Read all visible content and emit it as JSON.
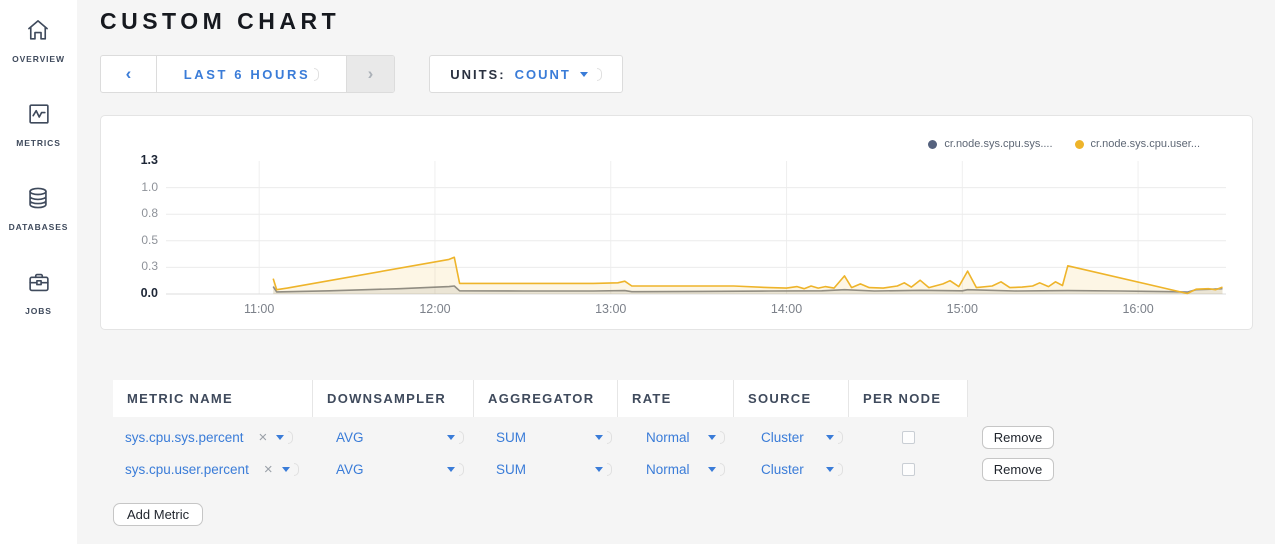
{
  "colors": {
    "accent_blue": "#3a7cd8",
    "slate": "#3f4a5c",
    "title": "#16191f",
    "page_bg": "#f5f5f5",
    "card_bg": "#ffffff",
    "grid": "#ececec",
    "series_sys_dot": "#55627e",
    "series_sys_line": "#84888f",
    "series_user": "#eeb42a"
  },
  "sidebar": {
    "items": [
      {
        "icon": "home-icon",
        "label": "OVERVIEW"
      },
      {
        "icon": "metrics-icon",
        "label": "METRICS"
      },
      {
        "icon": "databases-icon",
        "label": "DATABASES"
      },
      {
        "icon": "jobs-icon",
        "label": "JOBS"
      }
    ]
  },
  "header": {
    "title": "CUSTOM CHART"
  },
  "toolbar": {
    "time_range": {
      "prev": "‹",
      "label": "LAST 6 HOURS",
      "next": "›"
    },
    "units": {
      "label": "UNITS:",
      "value": "COUNT"
    }
  },
  "chart_data": {
    "type": "line",
    "title": "",
    "xlabel": "",
    "ylabel": "",
    "grid": true,
    "legend_position": "top-right",
    "ylim": [
      0,
      1.25
    ],
    "x_range_hours": [
      10.47,
      16.5
    ],
    "x_ticks": [
      {
        "label": "11:00",
        "t": 11
      },
      {
        "label": "12:00",
        "t": 12
      },
      {
        "label": "13:00",
        "t": 13
      },
      {
        "label": "14:00",
        "t": 14
      },
      {
        "label": "15:00",
        "t": 15
      },
      {
        "label": "16:00",
        "t": 16
      }
    ],
    "y_ticks": [
      {
        "label": "1.3",
        "v": 1.25,
        "bold": true
      },
      {
        "label": "1.0",
        "v": 1.0,
        "bold": false
      },
      {
        "label": "0.8",
        "v": 0.75,
        "bold": false
      },
      {
        "label": "0.5",
        "v": 0.5,
        "bold": false
      },
      {
        "label": "0.3",
        "v": 0.25,
        "bold": false
      },
      {
        "label": "0.0",
        "v": 0.0,
        "bold": true
      }
    ],
    "legend": [
      {
        "label": "cr.node.sys.cpu.sys....",
        "color": "#55627e"
      },
      {
        "label": "cr.node.sys.cpu.user...",
        "color": "#eeb42a"
      }
    ],
    "series": [
      {
        "name": "cr.node.sys.cpu.sys....",
        "line_color": "#84888f",
        "fill": "rgba(132,136,143,0.16)",
        "points": [
          [
            11.08,
            0.07
          ],
          [
            11.1,
            0.02
          ],
          [
            11.4,
            0.03
          ],
          [
            11.8,
            0.05
          ],
          [
            12.08,
            0.07
          ],
          [
            12.11,
            0.075
          ],
          [
            12.14,
            0.03
          ],
          [
            12.5,
            0.028
          ],
          [
            12.9,
            0.028
          ],
          [
            13.08,
            0.032
          ],
          [
            13.12,
            0.022
          ],
          [
            13.5,
            0.024
          ],
          [
            13.9,
            0.028
          ],
          [
            14.2,
            0.03
          ],
          [
            14.33,
            0.04
          ],
          [
            14.5,
            0.028
          ],
          [
            14.76,
            0.035
          ],
          [
            15.0,
            0.03
          ],
          [
            15.03,
            0.04
          ],
          [
            15.3,
            0.028
          ],
          [
            15.6,
            0.032
          ],
          [
            15.9,
            0.028
          ],
          [
            16.2,
            0.022
          ],
          [
            16.28,
            0.018
          ],
          [
            16.33,
            0.04
          ],
          [
            16.42,
            0.045
          ],
          [
            16.48,
            0.05
          ]
        ]
      },
      {
        "name": "cr.node.sys.cpu.user...",
        "line_color": "#eeb42a",
        "fill": "rgba(238,180,42,0.12)",
        "points": [
          [
            11.08,
            0.145
          ],
          [
            11.1,
            0.04
          ],
          [
            11.16,
            0.055
          ],
          [
            12.08,
            0.325
          ],
          [
            12.11,
            0.345
          ],
          [
            12.14,
            0.1
          ],
          [
            12.5,
            0.1
          ],
          [
            12.9,
            0.1
          ],
          [
            13.04,
            0.105
          ],
          [
            13.08,
            0.12
          ],
          [
            13.12,
            0.075
          ],
          [
            13.4,
            0.075
          ],
          [
            13.7,
            0.075
          ],
          [
            13.9,
            0.06
          ],
          [
            14.0,
            0.055
          ],
          [
            14.06,
            0.07
          ],
          [
            14.1,
            0.05
          ],
          [
            14.14,
            0.075
          ],
          [
            14.18,
            0.055
          ],
          [
            14.22,
            0.07
          ],
          [
            14.27,
            0.055
          ],
          [
            14.33,
            0.17
          ],
          [
            14.37,
            0.06
          ],
          [
            14.42,
            0.095
          ],
          [
            14.47,
            0.06
          ],
          [
            14.55,
            0.055
          ],
          [
            14.63,
            0.075
          ],
          [
            14.67,
            0.105
          ],
          [
            14.71,
            0.065
          ],
          [
            14.76,
            0.13
          ],
          [
            14.81,
            0.06
          ],
          [
            14.89,
            0.095
          ],
          [
            14.93,
            0.125
          ],
          [
            14.98,
            0.07
          ],
          [
            15.03,
            0.215
          ],
          [
            15.08,
            0.06
          ],
          [
            15.17,
            0.075
          ],
          [
            15.22,
            0.115
          ],
          [
            15.27,
            0.06
          ],
          [
            15.34,
            0.065
          ],
          [
            15.4,
            0.075
          ],
          [
            15.44,
            0.105
          ],
          [
            15.49,
            0.07
          ],
          [
            15.53,
            0.115
          ],
          [
            15.57,
            0.08
          ],
          [
            15.6,
            0.265
          ],
          [
            16.28,
            0.005
          ],
          [
            16.33,
            0.045
          ],
          [
            16.4,
            0.05
          ],
          [
            16.44,
            0.04
          ],
          [
            16.48,
            0.065
          ]
        ]
      }
    ]
  },
  "table": {
    "headers": [
      "METRIC NAME",
      "DOWNSAMPLER",
      "AGGREGATOR",
      "RATE",
      "SOURCE",
      "PER NODE"
    ],
    "rows": [
      {
        "metric": "sys.cpu.sys.percent",
        "remove_symbol": "×",
        "downsampler": "AVG",
        "aggregator": "SUM",
        "rate": "Normal",
        "source": "Cluster",
        "per_node_checked": false,
        "remove_label": "Remove"
      },
      {
        "metric": "sys.cpu.user.percent",
        "remove_symbol": "×",
        "downsampler": "AVG",
        "aggregator": "SUM",
        "rate": "Normal",
        "source": "Cluster",
        "per_node_checked": false,
        "remove_label": "Remove"
      }
    ],
    "add_metric_label": "Add Metric"
  }
}
